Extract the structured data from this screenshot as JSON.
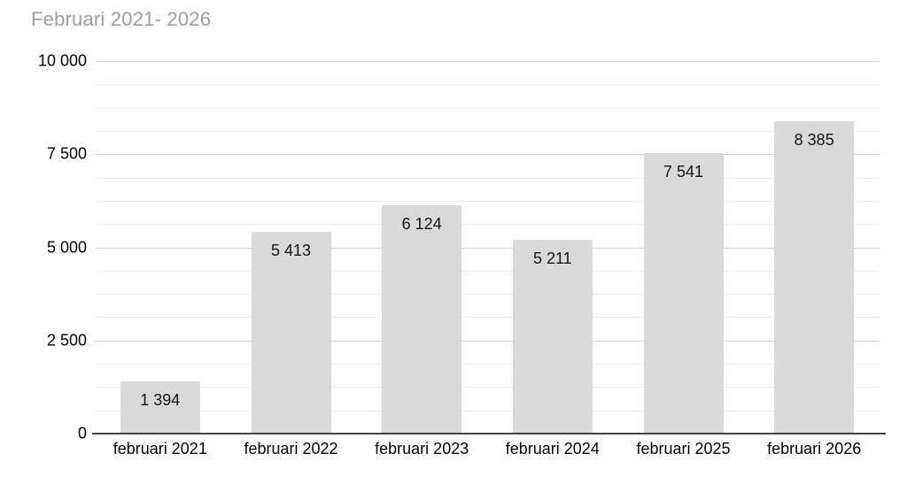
{
  "title": "Februari 2021- 2026",
  "colors": {
    "bar": "#d9d9d9",
    "title_text": "#9e9e9e",
    "axis_line": "#424242",
    "major_gridline": "#d4d4d4",
    "minor_gridline": "#ededed",
    "tick_text": "#050505",
    "bar_label_text": "#161616",
    "background": "#ffffff"
  },
  "chart_data": {
    "type": "bar",
    "title": "Februari 2021- 2026",
    "categories": [
      "februari 2021",
      "februari 2022",
      "februari 2023",
      "februari 2024",
      "februari 2025",
      "februari 2026"
    ],
    "values": [
      1394,
      5413,
      6124,
      5211,
      7541,
      8385
    ],
    "value_labels": [
      "1 394",
      "5 413",
      "6 124",
      "5 211",
      "7 541",
      "8 385"
    ],
    "xlabel": "",
    "ylabel": "",
    "ylim": [
      0,
      10000
    ],
    "y_ticks": [
      0,
      2500,
      5000,
      7500,
      10000
    ],
    "y_tick_labels": [
      "0",
      "2 500",
      "5 000",
      "7 500",
      "10 000"
    ],
    "minor_grid_step": 625,
    "grid": true,
    "legend": false,
    "bar_labels_position": "inside-top"
  }
}
